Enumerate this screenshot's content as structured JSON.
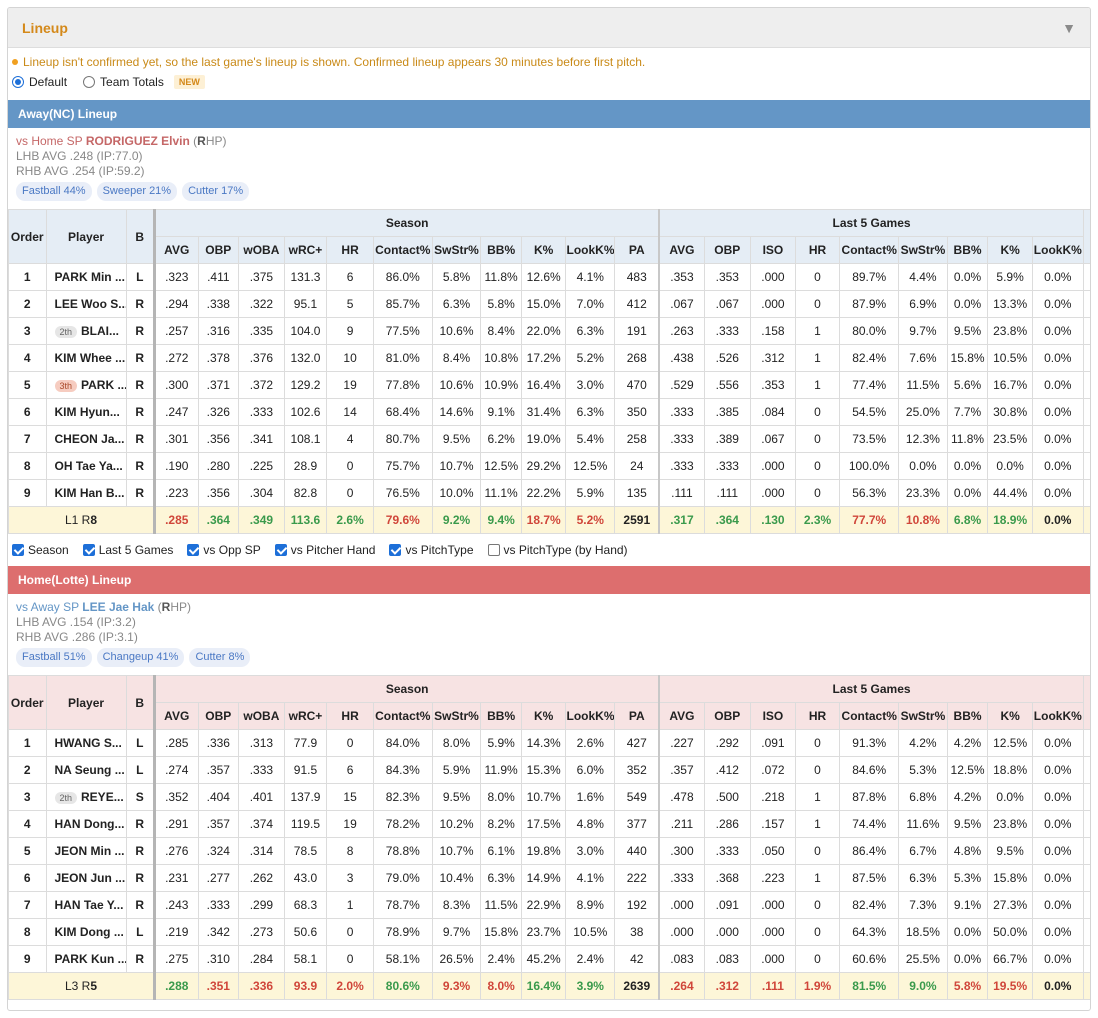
{
  "panel": {
    "title": "Lineup",
    "collapse_icon": "caret-down-icon"
  },
  "notice": "Lineup isn't confirmed yet, so the last game's lineup is shown. Confirmed lineup appears 30 minutes before first pitch.",
  "view_options": {
    "default_label": "Default",
    "team_totals_label": "Team Totals",
    "new_badge": "NEW",
    "selected": "default"
  },
  "columns": {
    "order": "Order",
    "player": "Player",
    "bats": "B",
    "season_group": "Season",
    "last5_group": "Last 5 Games",
    "season": [
      "AVG",
      "OBP",
      "wOBA",
      "wRC+",
      "HR",
      "Contact%",
      "SwStr%",
      "BB%",
      "K%",
      "LookK%",
      "PA"
    ],
    "last5": [
      "AVG",
      "OBP",
      "ISO",
      "HR",
      "Contact%",
      "SwStr%",
      "BB%",
      "K%",
      "LookK%"
    ]
  },
  "colors": {
    "away_bar": "#6496c6",
    "home_bar": "#dd6e6e",
    "accent": "#d4891a",
    "green": "#3a9a4c",
    "red": "#d0463a"
  },
  "away": {
    "title": "Away(NC) Lineup",
    "sp_prefix": "vs Home SP",
    "sp_name": "RODRIGUEZ Elvin",
    "sp_hand_letter": "R",
    "sp_hand_rest": "HP",
    "lhb": "LHB AVG .248 (IP:77.0)",
    "rhb": "RHB AVG .254 (IP:59.2)",
    "pitches": [
      "Fastball 44%",
      "Sweeper 21%",
      "Cutter 17%"
    ],
    "rows": [
      {
        "order": "1",
        "badge": "",
        "player": "PARK Min ...",
        "b": "L",
        "season": [
          ".323",
          ".411",
          ".375",
          "131.3",
          "6",
          "86.0%",
          "5.8%",
          "11.8%",
          "12.6%",
          "4.1%",
          "483"
        ],
        "last5": [
          ".353",
          ".353",
          ".000",
          "0",
          "89.7%",
          "4.4%",
          "0.0%",
          "5.9%",
          "0.0%"
        ]
      },
      {
        "order": "2",
        "badge": "",
        "player": "LEE Woo S...",
        "b": "R",
        "season": [
          ".294",
          ".338",
          ".322",
          "95.1",
          "5",
          "85.7%",
          "6.3%",
          "5.8%",
          "15.0%",
          "7.0%",
          "412"
        ],
        "last5": [
          ".067",
          ".067",
          ".000",
          "0",
          "87.9%",
          "6.9%",
          "0.0%",
          "13.3%",
          "0.0%"
        ]
      },
      {
        "order": "3",
        "badge": "2th",
        "player": "BLAI...",
        "b": "R",
        "season": [
          ".257",
          ".316",
          ".335",
          "104.0",
          "9",
          "77.5%",
          "10.6%",
          "8.4%",
          "22.0%",
          "6.3%",
          "191"
        ],
        "last5": [
          ".263",
          ".333",
          ".158",
          "1",
          "80.0%",
          "9.7%",
          "9.5%",
          "23.8%",
          "0.0%"
        ]
      },
      {
        "order": "4",
        "badge": "",
        "player": "KIM Whee ...",
        "b": "R",
        "season": [
          ".272",
          ".378",
          ".376",
          "132.0",
          "10",
          "81.0%",
          "8.4%",
          "10.8%",
          "17.2%",
          "5.2%",
          "268"
        ],
        "last5": [
          ".438",
          ".526",
          ".312",
          "1",
          "82.4%",
          "7.6%",
          "15.8%",
          "10.5%",
          "0.0%"
        ]
      },
      {
        "order": "5",
        "badge": "3th",
        "player": "PARK ...",
        "b": "R",
        "season": [
          ".300",
          ".371",
          ".372",
          "129.2",
          "19",
          "77.8%",
          "10.6%",
          "10.9%",
          "16.4%",
          "3.0%",
          "470"
        ],
        "last5": [
          ".529",
          ".556",
          ".353",
          "1",
          "77.4%",
          "11.5%",
          "5.6%",
          "16.7%",
          "0.0%"
        ]
      },
      {
        "order": "6",
        "badge": "",
        "player": "KIM Hyun...",
        "b": "R",
        "season": [
          ".247",
          ".326",
          ".333",
          "102.6",
          "14",
          "68.4%",
          "14.6%",
          "9.1%",
          "31.4%",
          "6.3%",
          "350"
        ],
        "last5": [
          ".333",
          ".385",
          ".084",
          "0",
          "54.5%",
          "25.0%",
          "7.7%",
          "30.8%",
          "0.0%"
        ]
      },
      {
        "order": "7",
        "badge": "",
        "player": "CHEON Ja...",
        "b": "R",
        "season": [
          ".301",
          ".356",
          ".341",
          "108.1",
          "4",
          "80.7%",
          "9.5%",
          "6.2%",
          "19.0%",
          "5.4%",
          "258"
        ],
        "last5": [
          ".333",
          ".389",
          ".067",
          "0",
          "73.5%",
          "12.3%",
          "11.8%",
          "23.5%",
          "0.0%"
        ]
      },
      {
        "order": "8",
        "badge": "",
        "player": "OH Tae Ya...",
        "b": "R",
        "season": [
          ".190",
          ".280",
          ".225",
          "28.9",
          "0",
          "75.7%",
          "10.7%",
          "12.5%",
          "29.2%",
          "12.5%",
          "24"
        ],
        "last5": [
          ".333",
          ".333",
          ".000",
          "0",
          "100.0%",
          "0.0%",
          "0.0%",
          "0.0%",
          "0.0%"
        ]
      },
      {
        "order": "9",
        "badge": "",
        "player": "KIM Han B...",
        "b": "R",
        "season": [
          ".223",
          ".356",
          ".304",
          "82.8",
          "0",
          "76.5%",
          "10.0%",
          "11.1%",
          "22.2%",
          "5.9%",
          "135"
        ],
        "last5": [
          ".111",
          ".111",
          ".000",
          "0",
          "56.3%",
          "23.3%",
          "0.0%",
          "44.4%",
          "0.0%"
        ]
      }
    ],
    "totals": {
      "label_a": "L1 R",
      "label_b": "8",
      "season": [
        ".285",
        ".364",
        ".349",
        "113.6",
        "2.6%",
        "79.6%",
        "9.2%",
        "9.4%",
        "18.7%",
        "5.2%",
        "2591"
      ],
      "season_cls": [
        "r",
        "g",
        "g",
        "g",
        "g",
        "r",
        "g",
        "g",
        "r",
        "r",
        ""
      ],
      "last5": [
        ".317",
        ".364",
        ".130",
        "2.3%",
        "77.7%",
        "10.8%",
        "6.8%",
        "18.9%",
        "0.0%"
      ],
      "last5_cls": [
        "g",
        "g",
        "g",
        "g",
        "r",
        "r",
        "g",
        "g",
        ""
      ]
    }
  },
  "filters": [
    {
      "label": "Season",
      "checked": true
    },
    {
      "label": "Last 5 Games",
      "checked": true
    },
    {
      "label": "vs Opp SP",
      "checked": true
    },
    {
      "label": "vs Pitcher Hand",
      "checked": true
    },
    {
      "label": "vs PitchType",
      "checked": true
    },
    {
      "label": "vs PitchType (by Hand)",
      "checked": false
    }
  ],
  "home": {
    "title": "Home(Lotte) Lineup",
    "sp_prefix": "vs Away SP",
    "sp_name": "LEE Jae Hak",
    "sp_hand_letter": "R",
    "sp_hand_rest": "HP",
    "lhb": "LHB AVG .154 (IP:3.2)",
    "rhb": "RHB AVG .286 (IP:3.1)",
    "pitches": [
      "Fastball 51%",
      "Changeup 41%",
      "Cutter 8%"
    ],
    "rows": [
      {
        "order": "1",
        "badge": "",
        "player": "HWANG S...",
        "b": "L",
        "season": [
          ".285",
          ".336",
          ".313",
          "77.9",
          "0",
          "84.0%",
          "8.0%",
          "5.9%",
          "14.3%",
          "2.6%",
          "427"
        ],
        "last5": [
          ".227",
          ".292",
          ".091",
          "0",
          "91.3%",
          "4.2%",
          "4.2%",
          "12.5%",
          "0.0%"
        ]
      },
      {
        "order": "2",
        "badge": "",
        "player": "NA Seung ...",
        "b": "L",
        "season": [
          ".274",
          ".357",
          ".333",
          "91.5",
          "6",
          "84.3%",
          "5.9%",
          "11.9%",
          "15.3%",
          "6.0%",
          "352"
        ],
        "last5": [
          ".357",
          ".412",
          ".072",
          "0",
          "84.6%",
          "5.3%",
          "12.5%",
          "18.8%",
          "0.0%"
        ]
      },
      {
        "order": "3",
        "badge": "2th",
        "player": "REYE...",
        "b": "S",
        "season": [
          ".352",
          ".404",
          ".401",
          "137.9",
          "15",
          "82.3%",
          "9.5%",
          "8.0%",
          "10.7%",
          "1.6%",
          "549"
        ],
        "last5": [
          ".478",
          ".500",
          ".218",
          "1",
          "87.8%",
          "6.8%",
          "4.2%",
          "0.0%",
          "0.0%"
        ]
      },
      {
        "order": "4",
        "badge": "",
        "player": "HAN Dong...",
        "b": "R",
        "season": [
          ".291",
          ".357",
          ".374",
          "119.5",
          "19",
          "78.2%",
          "10.2%",
          "8.2%",
          "17.5%",
          "4.8%",
          "377"
        ],
        "last5": [
          ".211",
          ".286",
          ".157",
          "1",
          "74.4%",
          "11.6%",
          "9.5%",
          "23.8%",
          "0.0%"
        ]
      },
      {
        "order": "5",
        "badge": "",
        "player": "JEON Min ...",
        "b": "R",
        "season": [
          ".276",
          ".324",
          ".314",
          "78.5",
          "8",
          "78.8%",
          "10.7%",
          "6.1%",
          "19.8%",
          "3.0%",
          "440"
        ],
        "last5": [
          ".300",
          ".333",
          ".050",
          "0",
          "86.4%",
          "6.7%",
          "4.8%",
          "9.5%",
          "0.0%"
        ]
      },
      {
        "order": "6",
        "badge": "",
        "player": "JEON Jun ...",
        "b": "R",
        "season": [
          ".231",
          ".277",
          ".262",
          "43.0",
          "3",
          "79.0%",
          "10.4%",
          "6.3%",
          "14.9%",
          "4.1%",
          "222"
        ],
        "last5": [
          ".333",
          ".368",
          ".223",
          "1",
          "87.5%",
          "6.3%",
          "5.3%",
          "15.8%",
          "0.0%"
        ]
      },
      {
        "order": "7",
        "badge": "",
        "player": "HAN Tae Y...",
        "b": "R",
        "season": [
          ".243",
          ".333",
          ".299",
          "68.3",
          "1",
          "78.7%",
          "8.3%",
          "11.5%",
          "22.9%",
          "8.9%",
          "192"
        ],
        "last5": [
          ".000",
          ".091",
          ".000",
          "0",
          "82.4%",
          "7.3%",
          "9.1%",
          "27.3%",
          "0.0%"
        ]
      },
      {
        "order": "8",
        "badge": "",
        "player": "KIM Dong ...",
        "b": "L",
        "season": [
          ".219",
          ".342",
          ".273",
          "50.6",
          "0",
          "78.9%",
          "9.7%",
          "15.8%",
          "23.7%",
          "10.5%",
          "38"
        ],
        "last5": [
          ".000",
          ".000",
          ".000",
          "0",
          "64.3%",
          "18.5%",
          "0.0%",
          "50.0%",
          "0.0%"
        ]
      },
      {
        "order": "9",
        "badge": "",
        "player": "PARK Kun ...",
        "b": "R",
        "season": [
          ".275",
          ".310",
          ".284",
          "58.1",
          "0",
          "58.1%",
          "26.5%",
          "2.4%",
          "45.2%",
          "2.4%",
          "42"
        ],
        "last5": [
          ".083",
          ".083",
          ".000",
          "0",
          "60.6%",
          "25.5%",
          "0.0%",
          "66.7%",
          "0.0%"
        ]
      }
    ],
    "totals": {
      "label_a": "L3 R",
      "label_b": "5",
      "season": [
        ".288",
        ".351",
        ".336",
        "93.9",
        "2.0%",
        "80.6%",
        "9.3%",
        "8.0%",
        "16.4%",
        "3.9%",
        "2639"
      ],
      "season_cls": [
        "g",
        "r",
        "r",
        "r",
        "r",
        "g",
        "r",
        "r",
        "g",
        "g",
        ""
      ],
      "last5": [
        ".264",
        ".312",
        ".111",
        "1.9%",
        "81.5%",
        "9.0%",
        "5.8%",
        "19.5%",
        "0.0%"
      ],
      "last5_cls": [
        "r",
        "r",
        "r",
        "r",
        "g",
        "g",
        "r",
        "r",
        ""
      ]
    }
  }
}
